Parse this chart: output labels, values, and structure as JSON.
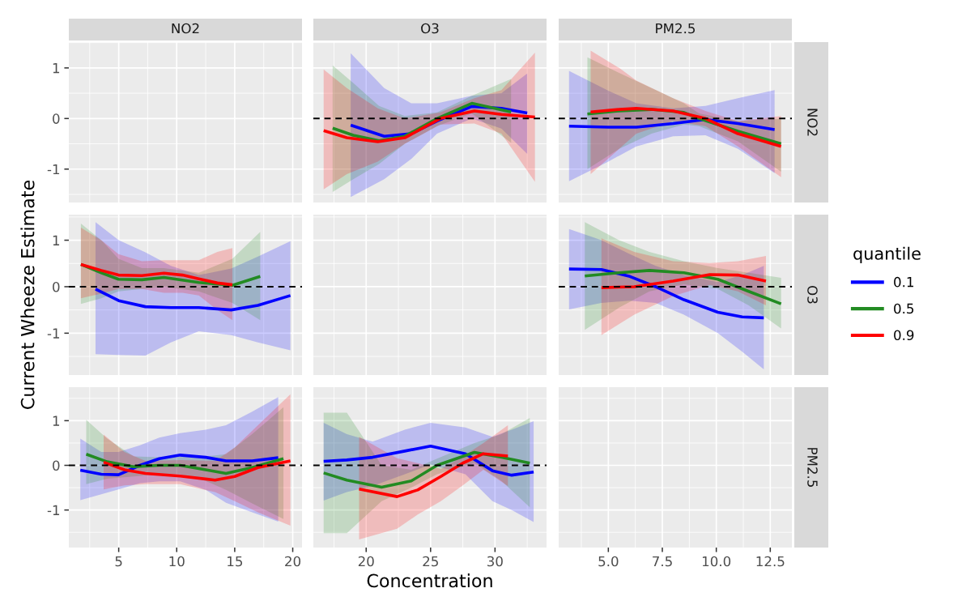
{
  "chart_data": [
    {
      "type": "line",
      "title": "NO2",
      "xlim": [
        0.7,
        20.8
      ],
      "ylim": [
        -1.66,
        1.51
      ],
      "xticks": [
        5,
        10,
        15,
        20
      ],
      "yticks": [
        -1,
        0,
        1
      ],
      "grid": true,
      "tick_labels": "y"
    },
    {
      "type": "line",
      "title": "O3",
      "xlim": [
        15.9,
        34.0
      ],
      "ylim": [
        -1.66,
        1.51
      ],
      "xticks": [
        20,
        25,
        30
      ],
      "yticks": [
        -1,
        0,
        1
      ],
      "grid": true,
      "tick_labels": false,
      "ref_lines": [
        {
          "axis": "y",
          "value": 0,
          "color": "#000000",
          "line_style": "dashed"
        }
      ],
      "series": [
        {
          "color": "#0000ff",
          "x": [
            18.8,
            21.4,
            23.5,
            25.5,
            28.2,
            30.5,
            32.5
          ],
          "values": [
            -0.13,
            -0.35,
            -0.3,
            -0.05,
            0.24,
            0.2,
            0.11
          ],
          "lower": [
            -1.55,
            -1.2,
            -0.8,
            -0.3,
            0.0,
            -0.2,
            -0.7
          ],
          "upper": [
            1.29,
            0.6,
            0.3,
            0.3,
            0.45,
            0.5,
            0.89
          ]
        },
        {
          "color": "#228b22",
          "x": [
            17.4,
            19,
            21,
            23,
            25.5,
            28.2,
            31.25
          ],
          "values": [
            -0.19,
            -0.33,
            -0.44,
            -0.35,
            0.0,
            0.3,
            0.13
          ],
          "lower": [
            -1.45,
            -1.2,
            -0.9,
            -0.5,
            -0.15,
            0.1,
            -0.48
          ],
          "upper": [
            1.05,
            0.7,
            0.25,
            0.05,
            0.12,
            0.45,
            0.78
          ]
        },
        {
          "color": "#ff0000",
          "x": [
            16.7,
            18.5,
            20.9,
            23,
            25.75,
            28.4,
            30.5,
            33.1
          ],
          "values": [
            -0.24,
            -0.38,
            -0.46,
            -0.38,
            0.0,
            0.15,
            0.08,
            0.03
          ],
          "lower": [
            -1.4,
            -1.1,
            -0.85,
            -0.5,
            -0.12,
            -0.1,
            -0.3,
            -1.25
          ],
          "upper": [
            0.97,
            0.6,
            0.2,
            0.0,
            0.12,
            0.4,
            0.56,
            1.3
          ]
        }
      ]
    },
    {
      "type": "line",
      "title": "PM2.5",
      "y2label": "NO2",
      "xlim": [
        2.7,
        13.5
      ],
      "ylim": [
        -1.66,
        1.51
      ],
      "xticks": [
        5,
        7.5,
        10,
        12.5
      ],
      "yticks": [
        -1,
        0,
        1
      ],
      "grid": true,
      "tick_labels": false,
      "ref_lines": [
        {
          "axis": "y",
          "value": 0,
          "color": "#000000",
          "line_style": "dashed"
        }
      ],
      "series": [
        {
          "color": "#0000ff",
          "x": [
            3.18,
            5,
            6.3,
            8,
            9.5,
            11,
            12.7
          ],
          "values": [
            -0.15,
            -0.17,
            -0.17,
            -0.1,
            -0.02,
            -0.1,
            -0.22
          ],
          "lower": [
            -1.24,
            -0.85,
            -0.55,
            -0.35,
            -0.33,
            -0.6,
            -1.08
          ],
          "upper": [
            0.94,
            0.55,
            0.3,
            0.2,
            0.25,
            0.4,
            0.56
          ]
        },
        {
          "color": "#228b22",
          "x": [
            4.03,
            5.5,
            7,
            8.5,
            9.2,
            11,
            13.0
          ],
          "values": [
            0.09,
            0.15,
            0.18,
            0.12,
            0.0,
            -0.25,
            -0.5
          ],
          "lower": [
            -1.0,
            -0.6,
            -0.3,
            -0.12,
            -0.15,
            -0.45,
            -1.05
          ],
          "upper": [
            1.21,
            0.9,
            0.6,
            0.3,
            0.1,
            -0.05,
            0.0
          ]
        },
        {
          "color": "#ff0000",
          "x": [
            4.18,
            5.5,
            6.3,
            8,
            9.5,
            11,
            13.0
          ],
          "values": [
            0.13,
            0.18,
            0.2,
            0.15,
            0.0,
            -0.3,
            -0.55
          ],
          "lower": [
            -1.1,
            -0.6,
            -0.3,
            -0.05,
            -0.15,
            -0.55,
            -1.16
          ],
          "upper": [
            1.34,
            1.0,
            0.75,
            0.4,
            0.15,
            -0.05,
            0.05
          ]
        }
      ]
    },
    {
      "type": "line",
      "ylabel": "Current Wheeze Estimate",
      "xlim": [
        0.7,
        20.8
      ],
      "ylim": [
        -1.9,
        1.55
      ],
      "xticks": [
        5,
        10,
        15,
        20
      ],
      "yticks": [
        -1,
        0,
        1
      ],
      "grid": true,
      "tick_labels": "y",
      "ref_lines": [
        {
          "axis": "y",
          "value": 0,
          "color": "#000000",
          "line_style": "dashed"
        }
      ],
      "series": [
        {
          "color": "#0000ff",
          "x": [
            3.0,
            5,
            7.3,
            9.5,
            11.9,
            14.7,
            17,
            19.8
          ],
          "values": [
            -0.05,
            -0.3,
            -0.43,
            -0.45,
            -0.45,
            -0.5,
            -0.4,
            -0.19
          ],
          "lower": [
            -1.45,
            -1.47,
            -1.48,
            -1.2,
            -0.96,
            -1.04,
            -1.2,
            -1.37
          ],
          "upper": [
            1.39,
            1.0,
            0.74,
            0.45,
            0.25,
            0.39,
            0.65,
            0.98
          ]
        },
        {
          "color": "#228b22",
          "x": [
            1.74,
            3.5,
            4.98,
            7,
            8.9,
            11.9,
            14.8,
            17.2
          ],
          "values": [
            0.48,
            0.3,
            0.16,
            0.15,
            0.2,
            0.09,
            0.03,
            0.22
          ],
          "lower": [
            -0.37,
            -0.25,
            -0.1,
            -0.05,
            0.0,
            -0.1,
            -0.35,
            -0.72
          ],
          "upper": [
            1.36,
            1.0,
            0.6,
            0.4,
            0.4,
            0.3,
            0.6,
            1.18
          ]
        },
        {
          "color": "#ff0000",
          "x": [
            1.74,
            3.5,
            4.98,
            7,
            8.9,
            10.5,
            11.9,
            13.5,
            14.8
          ],
          "values": [
            0.48,
            0.35,
            0.25,
            0.24,
            0.29,
            0.25,
            0.17,
            0.08,
            0.04
          ],
          "lower": [
            -0.25,
            -0.15,
            -0.05,
            -0.05,
            -0.13,
            -0.13,
            -0.19,
            -0.5,
            -0.72
          ],
          "upper": [
            1.27,
            1.0,
            0.7,
            0.55,
            0.57,
            0.57,
            0.57,
            0.75,
            0.83
          ]
        }
      ]
    },
    {
      "type": "line",
      "xlim": [
        15.9,
        34.0
      ],
      "ylim": [
        -1.9,
        1.55
      ],
      "xticks": [
        20,
        25,
        30
      ],
      "yticks": [
        -1,
        0,
        1
      ],
      "grid": true,
      "tick_labels": false
    },
    {
      "type": "line",
      "y2label": "O3",
      "xlim": [
        2.7,
        13.5
      ],
      "ylim": [
        -1.9,
        1.55
      ],
      "xticks": [
        5,
        7.5,
        10,
        12.5
      ],
      "yticks": [
        -1,
        0,
        1
      ],
      "grid": true,
      "tick_labels": false,
      "legend": "right",
      "legend_title": "quantile",
      "ref_lines": [
        {
          "axis": "y",
          "value": 0,
          "color": "#000000",
          "line_style": "dashed"
        }
      ],
      "series": [
        {
          "name": "0.1",
          "color": "#0000ff",
          "x": [
            3.18,
            4.68,
            6,
            7.19,
            8.5,
            10.07,
            11.2,
            12.2
          ],
          "values": [
            0.38,
            0.37,
            0.22,
            0.0,
            -0.28,
            -0.55,
            -0.65,
            -0.67
          ],
          "lower": [
            -0.49,
            -0.35,
            -0.3,
            -0.35,
            -0.6,
            -1.0,
            -1.4,
            -1.78
          ],
          "upper": [
            1.24,
            1.0,
            0.7,
            0.45,
            0.25,
            0.1,
            0.25,
            0.45
          ]
        },
        {
          "name": "0.5",
          "color": "#228b22",
          "x": [
            3.91,
            5.5,
            6.9,
            8.5,
            10.07,
            11.5,
            13.0
          ],
          "values": [
            0.23,
            0.3,
            0.35,
            0.3,
            0.16,
            -0.1,
            -0.37
          ],
          "lower": [
            -0.93,
            -0.45,
            -0.1,
            0.05,
            -0.05,
            -0.4,
            -0.9
          ],
          "upper": [
            1.39,
            1.0,
            0.75,
            0.55,
            0.4,
            0.3,
            0.19
          ]
        },
        {
          "name": "0.9",
          "color": "#ff0000",
          "x": [
            4.68,
            6.2,
            8,
            9.7,
            11,
            12.3
          ],
          "values": [
            -0.02,
            0.0,
            0.12,
            0.26,
            0.25,
            0.12
          ],
          "lower": [
            -1.04,
            -0.6,
            -0.2,
            0.04,
            -0.1,
            -0.4
          ],
          "upper": [
            1.04,
            0.75,
            0.55,
            0.51,
            0.55,
            0.66
          ]
        }
      ]
    },
    {
      "type": "line",
      "xlim": [
        0.7,
        20.8
      ],
      "ylim": [
        -1.84,
        1.75
      ],
      "xticks": [
        5,
        10,
        15,
        20
      ],
      "yticks": [
        -1,
        0,
        1
      ],
      "grid": true,
      "ref_lines": [
        {
          "axis": "y",
          "value": 0,
          "color": "#000000",
          "line_style": "dashed"
        }
      ],
      "series": [
        {
          "color": "#0000ff",
          "x": [
            1.69,
            3.5,
            4.98,
            6.83,
            8.5,
            10.3,
            12.5,
            14.25,
            16.5,
            18.75
          ],
          "values": [
            -0.11,
            -0.2,
            -0.21,
            0.0,
            0.15,
            0.23,
            0.18,
            0.1,
            0.1,
            0.17
          ],
          "lower": [
            -0.78,
            -0.65,
            -0.54,
            -0.4,
            -0.36,
            -0.36,
            -0.55,
            -0.84,
            -1.05,
            -1.26
          ],
          "upper": [
            0.6,
            0.3,
            0.3,
            0.45,
            0.62,
            0.72,
            0.8,
            0.9,
            1.2,
            1.53
          ]
        },
        {
          "color": "#228b22",
          "x": [
            2.2,
            4,
            6.3,
            8.5,
            10.3,
            12.5,
            14.25,
            16.5,
            19.2
          ],
          "values": [
            0.25,
            0.08,
            -0.03,
            0.0,
            0.0,
            -0.1,
            -0.18,
            -0.05,
            0.15
          ],
          "lower": [
            -0.42,
            -0.3,
            -0.25,
            -0.2,
            -0.2,
            -0.35,
            -0.55,
            -0.85,
            -1.2
          ],
          "upper": [
            1.02,
            0.6,
            0.2,
            0.18,
            0.2,
            0.2,
            0.25,
            0.7,
            1.3
          ]
        },
        {
          "color": "#ff0000",
          "x": [
            3.7,
            5.5,
            7.3,
            10.3,
            13.3,
            15,
            17,
            19.8
          ],
          "values": [
            0.07,
            -0.1,
            -0.18,
            -0.24,
            -0.33,
            -0.25,
            -0.05,
            0.1
          ],
          "lower": [
            -0.54,
            -0.45,
            -0.42,
            -0.42,
            -0.6,
            -0.8,
            -1.05,
            -1.35
          ],
          "upper": [
            0.69,
            0.3,
            0.1,
            0.12,
            0.1,
            0.4,
            0.9,
            1.59
          ]
        }
      ]
    },
    {
      "type": "line",
      "xlabel": "Concentration",
      "xlim": [
        15.9,
        34.0
      ],
      "ylim": [
        -1.84,
        1.75
      ],
      "xticks": [
        20,
        25,
        30
      ],
      "yticks": [
        -1,
        0,
        1
      ],
      "grid": true,
      "tick_labels": "x",
      "ref_lines": [
        {
          "axis": "y",
          "value": 0,
          "color": "#000000",
          "line_style": "dashed"
        }
      ],
      "series": [
        {
          "color": "#0000ff",
          "x": [
            16.7,
            18.5,
            20.5,
            23,
            25.0,
            27.7,
            29.8,
            31.3,
            33.0
          ],
          "values": [
            0.09,
            0.12,
            0.18,
            0.32,
            0.43,
            0.26,
            -0.12,
            -0.22,
            -0.15
          ],
          "lower": [
            -0.79,
            -0.6,
            -0.46,
            -0.2,
            0.02,
            -0.2,
            -0.8,
            -1.0,
            -1.27
          ],
          "upper": [
            0.95,
            0.7,
            0.53,
            0.8,
            0.95,
            0.85,
            0.64,
            0.8,
            0.99
          ]
        },
        {
          "color": "#228b22",
          "x": [
            16.7,
            18.5,
            21.2,
            23.5,
            25.5,
            28.4,
            30.5,
            32.7
          ],
          "values": [
            -0.17,
            -0.33,
            -0.49,
            -0.35,
            0.0,
            0.29,
            0.18,
            0.05
          ],
          "lower": [
            -1.52,
            -1.52,
            -0.8,
            -0.5,
            -0.2,
            0.05,
            -0.35,
            -0.94
          ],
          "upper": [
            1.18,
            1.18,
            0.0,
            -0.1,
            0.15,
            0.5,
            0.7,
            1.06
          ]
        },
        {
          "color": "#ff0000",
          "x": [
            19.45,
            22.4,
            24,
            25.8,
            27.5,
            29.1,
            31.0
          ],
          "values": [
            -0.53,
            -0.7,
            -0.55,
            -0.25,
            0.05,
            0.26,
            0.21
          ],
          "lower": [
            -1.66,
            -1.42,
            -1.1,
            -0.8,
            -0.45,
            -0.1,
            -0.46
          ],
          "upper": [
            0.64,
            0.16,
            0.05,
            -0.08,
            0.2,
            0.5,
            0.9
          ]
        }
      ]
    },
    {
      "type": "line",
      "y2label": "PM2.5",
      "xlim": [
        2.7,
        13.5
      ],
      "ylim": [
        -1.84,
        1.75
      ],
      "xticks": [
        {
          "value": 5,
          "label": "5.0"
        },
        {
          "value": 7.5,
          "label": "7.5"
        },
        {
          "value": 10,
          "label": "10.0"
        },
        {
          "value": 12.5,
          "label": "12.5"
        }
      ],
      "yticks": [
        -1,
        0,
        1
      ],
      "grid": true,
      "tick_labels": "x"
    }
  ]
}
